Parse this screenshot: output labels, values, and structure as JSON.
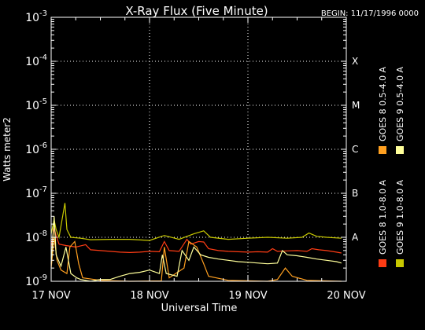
{
  "window_title": "X-Ray Flux (Five Minute)",
  "colors": {
    "background": "#000000",
    "frame": "#ffffff",
    "grid": "#ffffff",
    "goes8_long": "#ff3c14",
    "goes8_short": "#ffa020",
    "goes9_long": "#c8c800",
    "goes9_short": "#ffff9a"
  },
  "chart_data": {
    "type": "line",
    "title": "X-Ray Flux (Five Minute)",
    "begin_label": "BEGIN: 11/17/1996 0000",
    "xlabel": "Universal Time",
    "ylabel": "Watts meter2",
    "y_scale": "log",
    "ylim": [
      1e-09,
      0.001
    ],
    "xlim_days": [
      "17 NOV",
      "20 NOV"
    ],
    "x_ticks": [
      "17 NOV",
      "18 NOV",
      "19 NOV",
      "20 NOV"
    ],
    "y_ticks": [
      {
        "base": "10",
        "exp": "-9"
      },
      {
        "base": "10",
        "exp": "-8"
      },
      {
        "base": "10",
        "exp": "-7"
      },
      {
        "base": "10",
        "exp": "-6"
      },
      {
        "base": "10",
        "exp": "-5"
      },
      {
        "base": "10",
        "exp": "-4"
      },
      {
        "base": "10",
        "exp": "-3"
      }
    ],
    "flare_classes": [
      {
        "label": "A",
        "level": 1e-08
      },
      {
        "label": "B",
        "level": 1e-07
      },
      {
        "label": "C",
        "level": 1e-06
      },
      {
        "label": "M",
        "level": 1e-05
      },
      {
        "label": "X",
        "level": 0.0001
      }
    ],
    "grid": true,
    "legend_position": "right-vertical",
    "series": [
      {
        "name": "GOES 8 1.0-8.0 A",
        "color": "#ff3c14",
        "points": [
          [
            0.0,
            6e-09
          ],
          [
            0.03,
            1.6e-08
          ],
          [
            0.05,
            1.1e-08
          ],
          [
            0.08,
            7e-09
          ],
          [
            0.15,
            6.5e-09
          ],
          [
            0.25,
            6e-09
          ],
          [
            0.35,
            6.8e-09
          ],
          [
            0.4,
            5.2e-09
          ],
          [
            0.5,
            5e-09
          ],
          [
            0.6,
            4.8e-09
          ],
          [
            0.7,
            4.6e-09
          ],
          [
            0.8,
            4.5e-09
          ],
          [
            0.9,
            4.6e-09
          ],
          [
            1.0,
            4.8e-09
          ],
          [
            1.1,
            4.7e-09
          ],
          [
            1.15,
            8e-09
          ],
          [
            1.2,
            5e-09
          ],
          [
            1.3,
            4.8e-09
          ],
          [
            1.38,
            9e-09
          ],
          [
            1.42,
            7e-09
          ],
          [
            1.5,
            8e-09
          ],
          [
            1.55,
            7.8e-09
          ],
          [
            1.6,
            5.5e-09
          ],
          [
            1.7,
            5e-09
          ],
          [
            1.8,
            4.8e-09
          ],
          [
            1.9,
            4.7e-09
          ],
          [
            2.0,
            4.6e-09
          ],
          [
            2.1,
            4.7e-09
          ],
          [
            2.2,
            4.6e-09
          ],
          [
            2.25,
            5.5e-09
          ],
          [
            2.3,
            4.8e-09
          ],
          [
            2.4,
            4.9e-09
          ],
          [
            2.5,
            5e-09
          ],
          [
            2.6,
            4.8e-09
          ],
          [
            2.65,
            5.5e-09
          ],
          [
            2.72,
            5.2e-09
          ],
          [
            2.8,
            5e-09
          ],
          [
            2.9,
            4.6e-09
          ],
          [
            2.95,
            4.4e-09
          ]
        ]
      },
      {
        "name": "GOES 8 0.5-4.0 A",
        "color": "#ffa020",
        "points": [
          [
            0.0,
            2e-09
          ],
          [
            0.03,
            1e-08
          ],
          [
            0.06,
            3e-09
          ],
          [
            0.1,
            1.8e-09
          ],
          [
            0.16,
            1.5e-09
          ],
          [
            0.19,
            6e-09
          ],
          [
            0.24,
            8e-09
          ],
          [
            0.28,
            2.5e-09
          ],
          [
            0.32,
            1.2e-09
          ],
          [
            0.5,
            1.05e-09
          ],
          [
            0.8,
            1e-09
          ],
          [
            1.12,
            1.02e-09
          ],
          [
            1.15,
            6e-09
          ],
          [
            1.2,
            1.2e-09
          ],
          [
            1.35,
            2e-09
          ],
          [
            1.4,
            8e-09
          ],
          [
            1.48,
            6e-09
          ],
          [
            1.55,
            2.5e-09
          ],
          [
            1.6,
            1.3e-09
          ],
          [
            1.8,
            1.05e-09
          ],
          [
            2.2,
            1e-09
          ],
          [
            2.3,
            1.1e-09
          ],
          [
            2.38,
            2e-09
          ],
          [
            2.45,
            1.3e-09
          ],
          [
            2.6,
            1.05e-09
          ],
          [
            2.95,
            1e-09
          ]
        ]
      },
      {
        "name": "GOES 9 1.0-8.0 A",
        "color": "#c8c800",
        "points": [
          [
            0.0,
            1.2e-08
          ],
          [
            0.03,
            2.5e-08
          ],
          [
            0.05,
            1.5e-08
          ],
          [
            0.08,
            1e-08
          ],
          [
            0.14,
            6e-08
          ],
          [
            0.16,
            1.5e-08
          ],
          [
            0.2,
            1e-08
          ],
          [
            0.3,
            9.5e-09
          ],
          [
            0.4,
            8.8e-09
          ],
          [
            0.6,
            9e-09
          ],
          [
            0.8,
            9e-09
          ],
          [
            1.0,
            8.5e-09
          ],
          [
            1.15,
            1.1e-08
          ],
          [
            1.3,
            9e-09
          ],
          [
            1.45,
            1.2e-08
          ],
          [
            1.55,
            1.4e-08
          ],
          [
            1.62,
            1e-08
          ],
          [
            1.8,
            9e-09
          ],
          [
            2.0,
            9.5e-09
          ],
          [
            2.2,
            1e-08
          ],
          [
            2.4,
            9.5e-09
          ],
          [
            2.55,
            1e-08
          ],
          [
            2.62,
            1.25e-08
          ],
          [
            2.7,
            1.05e-08
          ],
          [
            2.8,
            1e-08
          ],
          [
            2.95,
            9.5e-09
          ]
        ]
      },
      {
        "name": "GOES 9 0.5-4.0 A",
        "color": "#ffff9a",
        "points": [
          [
            0.0,
            2.5e-09
          ],
          [
            0.03,
            3e-08
          ],
          [
            0.05,
            4e-09
          ],
          [
            0.1,
            2.2e-09
          ],
          [
            0.15,
            6e-09
          ],
          [
            0.2,
            1.5e-09
          ],
          [
            0.26,
            1.2e-09
          ],
          [
            0.3,
            1.1e-09
          ],
          [
            0.4,
            1e-09
          ],
          [
            0.5,
            1.1e-09
          ],
          [
            0.6,
            1.1e-09
          ],
          [
            0.7,
            1.3e-09
          ],
          [
            0.8,
            1.5e-09
          ],
          [
            0.9,
            1.6e-09
          ],
          [
            1.0,
            1.8e-09
          ],
          [
            1.1,
            1.5e-09
          ],
          [
            1.13,
            4e-09
          ],
          [
            1.17,
            1.5e-09
          ],
          [
            1.28,
            1.3e-09
          ],
          [
            1.33,
            5e-09
          ],
          [
            1.4,
            3e-09
          ],
          [
            1.45,
            6e-09
          ],
          [
            1.52,
            4e-09
          ],
          [
            1.6,
            3.5e-09
          ],
          [
            1.7,
            3.2e-09
          ],
          [
            1.8,
            3e-09
          ],
          [
            1.9,
            2.8e-09
          ],
          [
            2.0,
            2.7e-09
          ],
          [
            2.2,
            2.5e-09
          ],
          [
            2.3,
            2.6e-09
          ],
          [
            2.35,
            5e-09
          ],
          [
            2.4,
            4e-09
          ],
          [
            2.5,
            3.8e-09
          ],
          [
            2.6,
            3.5e-09
          ],
          [
            2.7,
            3.2e-09
          ],
          [
            2.8,
            3e-09
          ],
          [
            2.9,
            2.8e-09
          ],
          [
            2.95,
            2.6e-09
          ]
        ]
      }
    ]
  }
}
